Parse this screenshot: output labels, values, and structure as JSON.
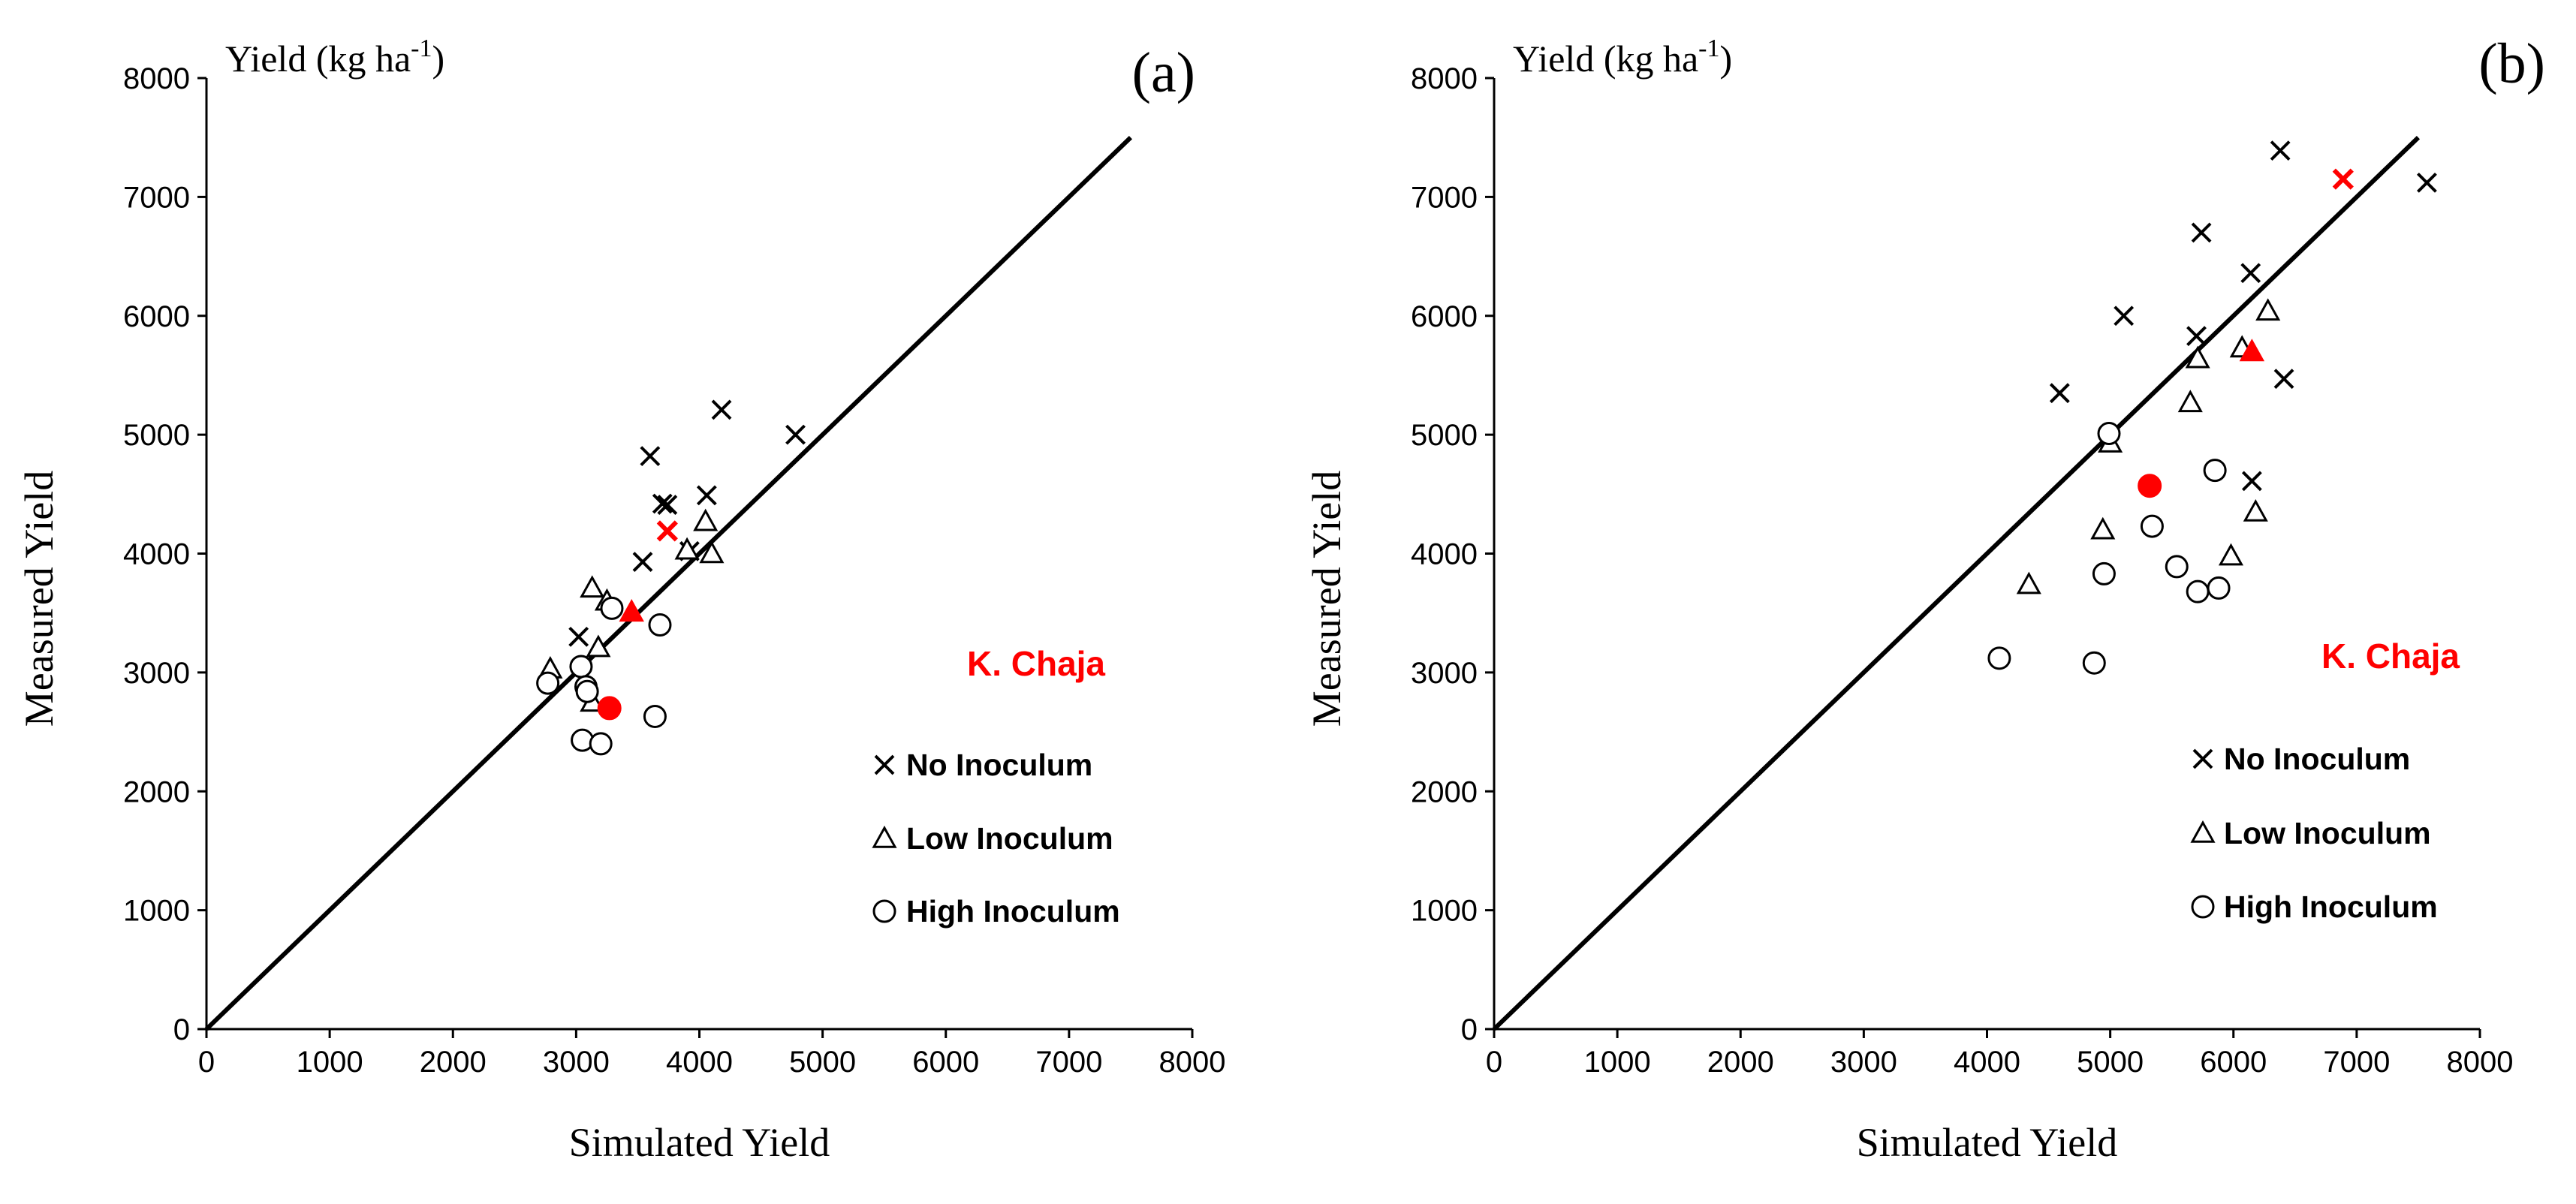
{
  "colors": {
    "highlight": "#FF0000",
    "ink": "#000000"
  },
  "chart_data": [
    {
      "type": "scatter",
      "panel_label": "(a)",
      "unit_label": "Yield (kg ha",
      "unit_exponent": "-1",
      "unit_close": ")",
      "xlabel": "Simulated Yield",
      "ylabel": "Measured Yield",
      "xlim": [
        0,
        8000
      ],
      "ylim": [
        0,
        8000
      ],
      "xticks": [
        "0",
        "1000",
        "2000",
        "3000",
        "4000",
        "5000",
        "6000",
        "7000",
        "8000"
      ],
      "yticks": [
        "0",
        "1000",
        "2000",
        "3000",
        "4000",
        "5000",
        "6000",
        "7000",
        "8000"
      ],
      "one_to_one": [
        [
          0,
          0
        ],
        [
          7500,
          7500
        ]
      ],
      "annotation": "K. Chaja",
      "legend": [
        "No Inoculum",
        "Low Inoculum",
        "High Inoculum"
      ],
      "series": [
        {
          "name": "No Inoculum",
          "marker": "x",
          "points": [
            [
              4180,
              5210
            ],
            [
              4780,
              5000
            ],
            [
              3600,
              4820
            ],
            [
              3700,
              4420
            ],
            [
              3740,
              4410
            ],
            [
              4060,
              4490
            ],
            [
              3540,
              3930
            ],
            [
              3920,
              4020
            ],
            [
              3020,
              3300
            ]
          ]
        },
        {
          "name": "Low Inoculum",
          "marker": "triangle",
          "points": [
            [
              3130,
              3710
            ],
            [
              3250,
              3600
            ],
            [
              4050,
              4270
            ],
            [
              4100,
              4000
            ],
            [
              3900,
              4030
            ],
            [
              2790,
              3030
            ],
            [
              3180,
              3210
            ],
            [
              3130,
              2750
            ]
          ]
        },
        {
          "name": "High Inoculum",
          "marker": "circle",
          "points": [
            [
              2770,
              2910
            ],
            [
              3040,
              3050
            ],
            [
              3080,
              2880
            ],
            [
              3090,
              2840
            ],
            [
              3050,
              2430
            ],
            [
              3200,
              2400
            ],
            [
              3640,
              2630
            ],
            [
              3680,
              3400
            ],
            [
              3290,
              3540
            ]
          ]
        },
        {
          "name": "K. Chaja No Inoculum",
          "marker": "x",
          "highlight": true,
          "points": [
            [
              3740,
              4190
            ]
          ]
        },
        {
          "name": "K. Chaja Low Inoculum",
          "marker": "triangle",
          "highlight": true,
          "points": [
            [
              3450,
              3510
            ]
          ]
        },
        {
          "name": "K. Chaja High Inoculum",
          "marker": "circle",
          "highlight": true,
          "points": [
            [
              3270,
              2700
            ]
          ]
        }
      ]
    },
    {
      "type": "scatter",
      "panel_label": "(b)",
      "unit_label": "Yield (kg ha",
      "unit_exponent": "-1",
      "unit_close": ")",
      "xlabel": "Simulated Yield",
      "ylabel": "Measured Yield",
      "xlim": [
        0,
        8000
      ],
      "ylim": [
        0,
        8000
      ],
      "xticks": [
        "0",
        "1000",
        "2000",
        "3000",
        "4000",
        "5000",
        "6000",
        "7000",
        "8000"
      ],
      "yticks": [
        "0",
        "1000",
        "2000",
        "3000",
        "4000",
        "5000",
        "6000",
        "7000",
        "8000"
      ],
      "one_to_one": [
        [
          0,
          0
        ],
        [
          7500,
          7500
        ]
      ],
      "annotation": "K. Chaja",
      "legend": [
        "No Inoculum",
        "Low Inoculum",
        "High Inoculum"
      ],
      "series": [
        {
          "name": "No Inoculum",
          "marker": "x",
          "points": [
            [
              6380,
              7390
            ],
            [
              7570,
              7120
            ],
            [
              5740,
              6700
            ],
            [
              6140,
              6360
            ],
            [
              5110,
              6000
            ],
            [
              5700,
              5830
            ],
            [
              4590,
              5350
            ],
            [
              6410,
              5470
            ],
            [
              6150,
              4610
            ]
          ]
        },
        {
          "name": "Low Inoculum",
          "marker": "triangle",
          "points": [
            [
              6280,
              6040
            ],
            [
              6070,
              5730
            ],
            [
              5710,
              5640
            ],
            [
              5650,
              5270
            ],
            [
              5000,
              4930
            ],
            [
              4940,
              4200
            ],
            [
              6180,
              4350
            ],
            [
              5980,
              3980
            ],
            [
              4340,
              3740
            ]
          ]
        },
        {
          "name": "High Inoculum",
          "marker": "circle",
          "points": [
            [
              4990,
              5010
            ],
            [
              5850,
              4700
            ],
            [
              5340,
              4230
            ],
            [
              4950,
              3830
            ],
            [
              5540,
              3890
            ],
            [
              5710,
              3680
            ],
            [
              5880,
              3710
            ],
            [
              4100,
              3120
            ],
            [
              4870,
              3080
            ]
          ]
        },
        {
          "name": "K. Chaja No Inoculum",
          "marker": "x",
          "highlight": true,
          "points": [
            [
              6890,
              7150
            ]
          ]
        },
        {
          "name": "K. Chaja Low Inoculum",
          "marker": "triangle",
          "highlight": true,
          "points": [
            [
              6150,
              5700
            ]
          ]
        },
        {
          "name": "K. Chaja High Inoculum",
          "marker": "circle",
          "highlight": true,
          "points": [
            [
              5320,
              4570
            ]
          ]
        }
      ]
    }
  ]
}
